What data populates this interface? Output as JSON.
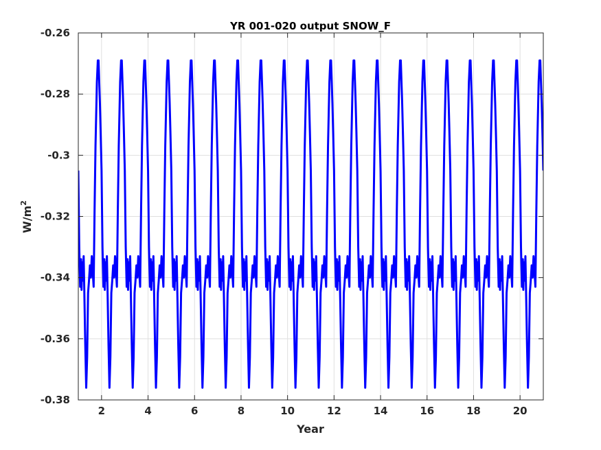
{
  "chart_data": {
    "type": "line",
    "title": "YR 001-020 output SNOW_F",
    "xlabel": "Year",
    "ylabel": "W/m",
    "ylabel_superscript": "2",
    "xlim": [
      1,
      21
    ],
    "ylim": [
      -0.38,
      -0.26
    ],
    "x_ticks": [
      2,
      4,
      6,
      8,
      10,
      12,
      14,
      16,
      18,
      20
    ],
    "x_tick_labels": [
      "2",
      "4",
      "6",
      "8",
      "10",
      "12",
      "14",
      "16",
      "18",
      "20"
    ],
    "y_ticks": [
      -0.38,
      -0.36,
      -0.34,
      -0.32,
      -0.3,
      -0.28,
      -0.26
    ],
    "y_tick_labels": [
      "-0.38",
      "-0.36",
      "-0.34",
      "-0.32",
      "-0.3",
      "-0.28",
      "-0.26"
    ],
    "grid": true,
    "line_color": "#0000ff",
    "series": [
      {
        "name": "",
        "cycle": {
          "period_years": 1,
          "phase_x": [
            0.0,
            0.04,
            0.08,
            0.12,
            0.14,
            0.17,
            0.2,
            0.23,
            0.26,
            0.3,
            0.34,
            0.38,
            0.42,
            0.46,
            0.5,
            0.54,
            0.58,
            0.62,
            0.66,
            0.7,
            0.74,
            0.8,
            0.84,
            0.87,
            0.9,
            0.93,
            0.96,
            1.0
          ],
          "phase_y": [
            -0.305,
            -0.33,
            -0.343,
            -0.334,
            -0.344,
            -0.335,
            -0.341,
            -0.333,
            -0.345,
            -0.362,
            -0.376,
            -0.366,
            -0.345,
            -0.341,
            -0.336,
            -0.34,
            -0.333,
            -0.338,
            -0.343,
            -0.318,
            -0.297,
            -0.276,
            -0.269,
            -0.269,
            -0.276,
            -0.283,
            -0.292,
            -0.305
          ]
        }
      }
    ]
  }
}
